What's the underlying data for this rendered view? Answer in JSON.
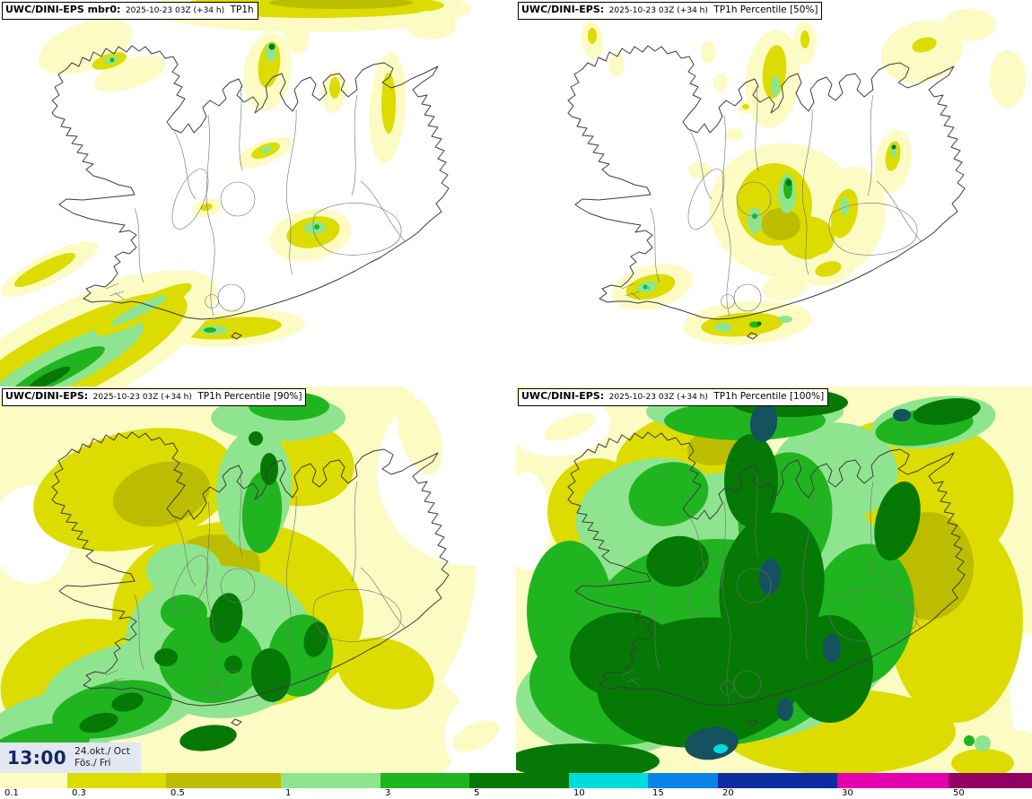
{
  "panels": [
    {
      "model": "UWC/DINI-EPS mbr0:",
      "valid": "2025-10-23 03Z (+34 h)",
      "param": "TP1h"
    },
    {
      "model": "UWC/DINI-EPS:",
      "valid": "2025-10-23 03Z (+34 h)",
      "param": "TP1h Percentile [50%]"
    },
    {
      "model": "UWC/DINI-EPS:",
      "valid": "2025-10-23 03Z (+34 h)",
      "param": "TP1h Percentile [90%]"
    },
    {
      "model": "UWC/DINI-EPS:",
      "valid": "2025-10-23 03Z (+34 h)",
      "param": "TP1h Percentile [100%]"
    }
  ],
  "clock": {
    "time": "13:00",
    "date": "24.okt./ Oct",
    "day": "Fös./ Fri"
  },
  "colorbar": {
    "segments": [
      {
        "label": "0.1",
        "color": "#fcfcc2",
        "grow": 75
      },
      {
        "label": "0.3",
        "color": "#dcdc00",
        "grow": 110
      },
      {
        "label": "0.5",
        "color": "#bdbd00",
        "grow": 128
      },
      {
        "label": "1",
        "color": "#8fe58f",
        "grow": 111
      },
      {
        "label": "3",
        "color": "#21b421",
        "grow": 99
      },
      {
        "label": "5",
        "color": "#067806",
        "grow": 111
      },
      {
        "label": "10",
        "color": "#00dcdc",
        "grow": 88
      },
      {
        "label": "15",
        "color": "#0a82e6",
        "grow": 78
      },
      {
        "label": "20",
        "color": "#0f2da0",
        "grow": 133
      },
      {
        "label": "30",
        "color": "#e400ae",
        "grow": 124
      },
      {
        "label": "50",
        "color": "#8f0060",
        "grow": 93
      }
    ]
  }
}
